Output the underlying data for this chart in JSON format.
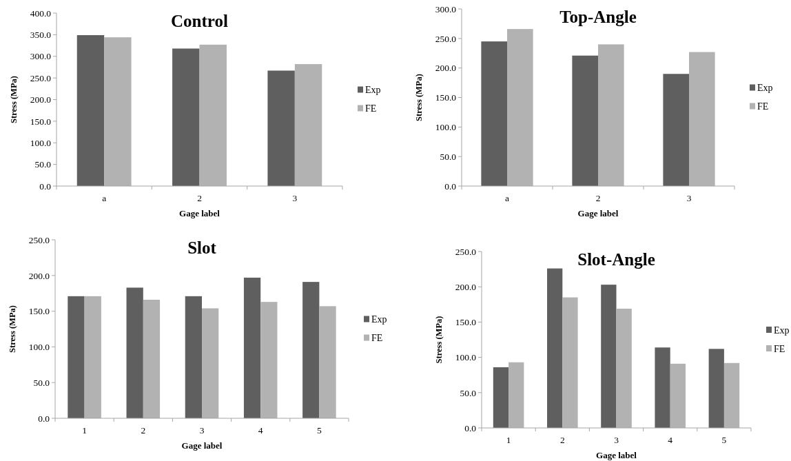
{
  "chart_data": [
    {
      "type": "bar",
      "title": "Control",
      "xlabel": "Gage label",
      "ylabel": "Stress (MPa)",
      "categories": [
        "a",
        "2",
        "3"
      ],
      "series": [
        {
          "name": "Exp",
          "color": "#5f5f5f",
          "values": [
            349,
            318,
            267
          ]
        },
        {
          "name": "FE",
          "color": "#b2b2b2",
          "values": [
            344,
            327,
            282
          ]
        }
      ],
      "ylim": [
        0,
        400
      ],
      "yticks": [
        {
          "value": 0,
          "label": "0.0"
        },
        {
          "value": 50,
          "label": "50.0"
        },
        {
          "value": 100,
          "label": "100.0"
        },
        {
          "value": 150,
          "label": "150.0"
        },
        {
          "value": 200,
          "label": "200.0"
        },
        {
          "value": 250,
          "label": "250.0"
        },
        {
          "value": 300,
          "label": "300.0"
        },
        {
          "value": 350,
          "label": "350.0"
        },
        {
          "value": 400,
          "label": "400.0"
        }
      ],
      "grid": false,
      "legend": "right"
    },
    {
      "type": "bar",
      "title": "Top-Angle",
      "xlabel": "Gage label",
      "ylabel": "Stress (MPa)",
      "categories": [
        "a",
        "2",
        "3"
      ],
      "series": [
        {
          "name": "Exp",
          "color": "#5f5f5f",
          "values": [
            245,
            221,
            190
          ]
        },
        {
          "name": "FE",
          "color": "#b2b2b2",
          "values": [
            266,
            240,
            227
          ]
        }
      ],
      "ylim": [
        0,
        300
      ],
      "yticks": [
        {
          "value": 0,
          "label": "0.0"
        },
        {
          "value": 50,
          "label": "50.0"
        },
        {
          "value": 100,
          "label": "100.0"
        },
        {
          "value": 150,
          "label": "150.0"
        },
        {
          "value": 200,
          "label": "200.0"
        },
        {
          "value": 250,
          "label": "250.0"
        },
        {
          "value": 300,
          "label": "300.0"
        }
      ],
      "grid": false,
      "legend": "right"
    },
    {
      "type": "bar",
      "title": "Slot",
      "xlabel": "Gage label",
      "ylabel": "Stress (MPa)",
      "categories": [
        "1",
        "2",
        "3",
        "4",
        "5"
      ],
      "series": [
        {
          "name": "Exp",
          "color": "#5f5f5f",
          "values": [
            171,
            183,
            171,
            197,
            191
          ]
        },
        {
          "name": "FE",
          "color": "#b2b2b2",
          "values": [
            171,
            166,
            154,
            163,
            157
          ]
        }
      ],
      "ylim": [
        0,
        250
      ],
      "yticks": [
        {
          "value": 0,
          "label": "0.0"
        },
        {
          "value": 50,
          "label": "50.0"
        },
        {
          "value": 100,
          "label": "100.0"
        },
        {
          "value": 150,
          "label": "150.0"
        },
        {
          "value": 200,
          "label": "200.0"
        },
        {
          "value": 250,
          "label": "250.0"
        }
      ],
      "grid": false,
      "legend": "right"
    },
    {
      "type": "bar",
      "title": "Slot-Angle",
      "xlabel": "Gage label",
      "ylabel": "Stress (MPa)",
      "categories": [
        "1",
        "2",
        "3",
        "4",
        "5"
      ],
      "series": [
        {
          "name": "Exp",
          "color": "#5f5f5f",
          "values": [
            86,
            226,
            203,
            114,
            112
          ]
        },
        {
          "name": "FE",
          "color": "#b2b2b2",
          "values": [
            93,
            185,
            169,
            91,
            92
          ]
        }
      ],
      "ylim": [
        0,
        250
      ],
      "yticks": [
        {
          "value": 0,
          "label": "0.0"
        },
        {
          "value": 50,
          "label": "50.0"
        },
        {
          "value": 100,
          "label": "100.0"
        },
        {
          "value": 150,
          "label": "150.0"
        },
        {
          "value": 200,
          "label": "200.0"
        },
        {
          "value": 250,
          "label": "250.0"
        }
      ],
      "grid": false,
      "legend": "right"
    }
  ]
}
